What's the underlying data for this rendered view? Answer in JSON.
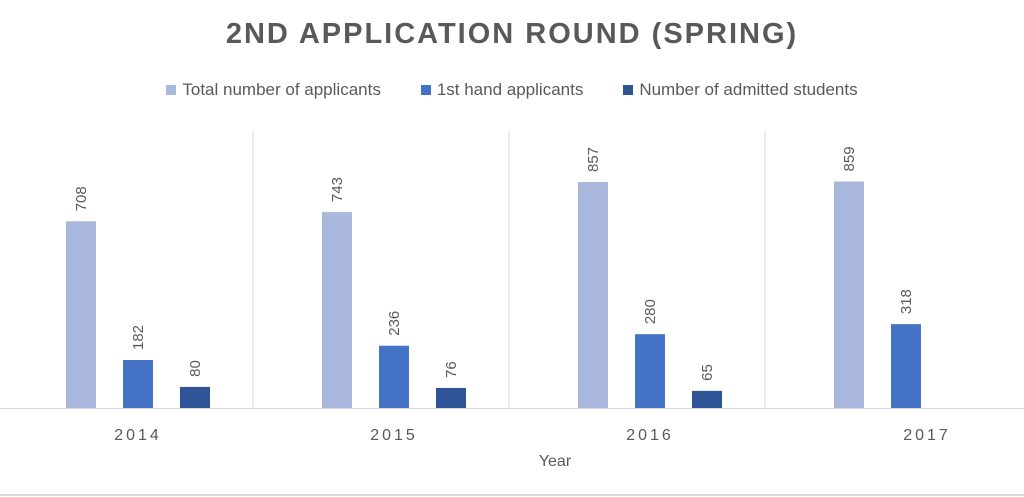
{
  "chart_data": {
    "type": "bar",
    "title": "2ND APPLICATION ROUND (SPRING)",
    "xlabel": "Year",
    "ylabel": "",
    "categories": [
      "2014",
      "2015",
      "2016",
      "2017"
    ],
    "series": [
      {
        "name": "Total number of applicants",
        "values": [
          708,
          743,
          857,
          859
        ],
        "color": "#A9B8DC"
      },
      {
        "name": "1st hand applicants",
        "values": [
          182,
          236,
          280,
          318
        ],
        "color": "#4472C4"
      },
      {
        "name": "Number of admitted students",
        "values": [
          80,
          76,
          65,
          null
        ],
        "color": "#2F5597"
      }
    ],
    "ylim": [
      0,
      1000
    ],
    "legend_position": "top",
    "grid": false
  }
}
